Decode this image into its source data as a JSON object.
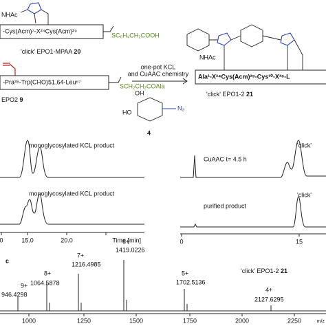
{
  "scheme": {
    "sm1": {
      "nhac": "NHAc",
      "peptide": "-Cys(Acm)⁷-X²⁴Cys(Acm)²⁹",
      "thioester": "SC₆H₄CH₂COOH",
      "label": "'click' EPO1-MPAA",
      "number": "20"
    },
    "sm2": {
      "peptide": "-Pra³⁸-Trp(CHO)51,64-Leu⁶⁷",
      "thioester": "SCH₂CH₂COAla",
      "label": "EPO2",
      "number": "9"
    },
    "conditions": [
      "one-pot KCL",
      "and CuAAC chemistry"
    ],
    "sugar": {
      "oh": "OH",
      "ho": "HO",
      "azide": "N₃",
      "number": "4"
    },
    "product": {
      "nhac": "NHAc",
      "peptide": "Ala¹-X²⁴Cys(Acm)²⁹-Cys³⁰-X³⁸-L",
      "label": "'click' EPO1-2",
      "number": "21"
    }
  },
  "hplc": {
    "left": {
      "traces": [
        "monoglycosylated KCL product",
        "monoglycosylated KCL product"
      ],
      "xticks": [
        "0",
        "15.0",
        "20.0"
      ],
      "xlabel": "Time [min]"
    },
    "right": {
      "traces": [
        "CuAAC t= 4.5 h",
        "purified product"
      ],
      "peak_labels": [
        "'click'",
        "'click'"
      ],
      "xticks": [
        "0",
        "15"
      ]
    }
  },
  "ms": {
    "panel": "c",
    "title": "'click' EPO1-2",
    "number": "21",
    "peaks": [
      {
        "charge": "9+",
        "mz": "946.4298"
      },
      {
        "charge": "8+",
        "mz": "1064.5878"
      },
      {
        "charge": "7+",
        "mz": "1216.4985"
      },
      {
        "charge": "6+",
        "mz": "1419.0226"
      },
      {
        "charge": "5+",
        "mz": "1702.5136"
      },
      {
        "charge": "4+",
        "mz": "2127.6295"
      }
    ],
    "xticks": [
      "1000",
      "1250",
      "1500",
      "1750",
      "2000",
      "2250"
    ],
    "xlabel": "m/z"
  }
}
